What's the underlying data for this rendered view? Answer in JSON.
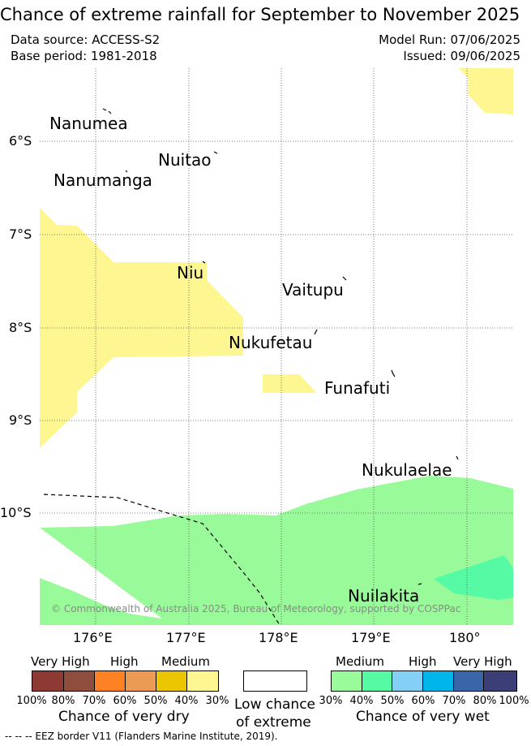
{
  "title": "Chance of extreme rainfall for September to November 2025",
  "meta": {
    "data_source": "Data source: ACCESS-S2",
    "base_period": "Base period: 1981-2018",
    "model_run": "Model Run: 07/06/2025",
    "issued": "Issued: 09/06/2025"
  },
  "map": {
    "latitude_labels": [
      "6°S",
      "7°S",
      "8°S",
      "9°S",
      "10°S"
    ],
    "longitude_labels": [
      "176°E",
      "177°E",
      "178°E",
      "179°E",
      "180°"
    ],
    "places": [
      "Nanumea",
      "Nuitao",
      "Nanumanga",
      "Niu",
      "Vaitupu",
      "Nukufetau",
      "Funafuti",
      "Nukulaelae",
      "Nuilakita"
    ],
    "copyright": "© Commonwealth of Australia 2025, Bureau of Meteorology, supported by COSPPac",
    "colors": {
      "dry_medium": "#fef690",
      "wet_medium": "#99fa99",
      "wet_40": "#56faa4",
      "grid": "#555555",
      "land": "#000000"
    }
  },
  "legend": {
    "dry": {
      "levels": [
        "Very High",
        "High",
        "Medium"
      ],
      "colors": [
        "#8c3a33",
        "#8f4d3d",
        "#fe8224",
        "#eb9b54",
        "#ebc500",
        "#fef690"
      ],
      "ticks": [
        "100%",
        "80%",
        "70%",
        "60%",
        "50%",
        "40%",
        "30%"
      ],
      "caption": "Chance of very dry"
    },
    "low_chance": {
      "caption_line1": "Low chance",
      "caption_line2": "of extreme"
    },
    "wet": {
      "levels": [
        "Medium",
        "High",
        "Very High"
      ],
      "colors": [
        "#99fa99",
        "#56faa4",
        "#84cff6",
        "#00b5ea",
        "#3a65a8",
        "#3c3f77"
      ],
      "ticks": [
        "30%",
        "40%",
        "50%",
        "60%",
        "70%",
        "80%",
        "100%"
      ],
      "caption": "Chance of very wet"
    },
    "eez_note": "--  --  -- EEZ border V11 (Flanders Marine Institute, 2019)."
  }
}
